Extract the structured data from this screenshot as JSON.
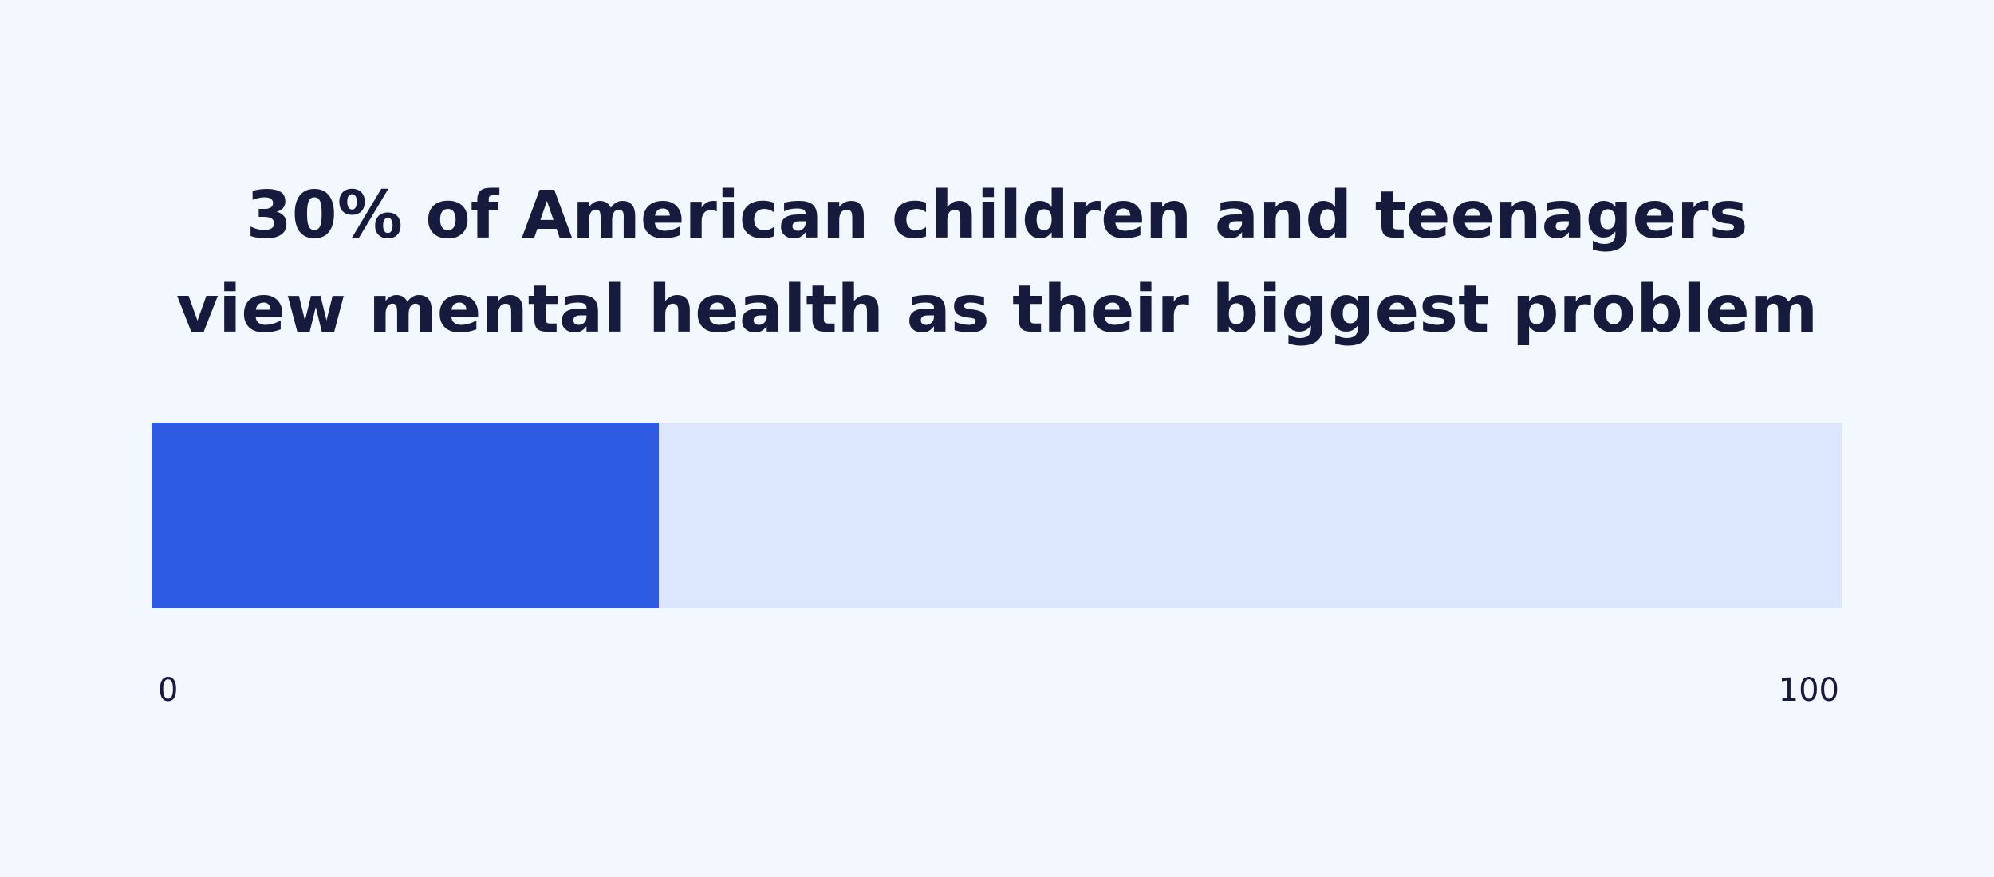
{
  "colors": {
    "background": "#f3f7fe",
    "fill": "#2e5be3",
    "track": "#dce7fd",
    "text": "#161a3d"
  },
  "chart_data": {
    "type": "bar",
    "title_lines": [
      "30% of American children and teenagers",
      "view mental health as their biggest problem"
    ],
    "value": 30,
    "xlim": [
      0,
      100
    ],
    "tick_labels": [
      "0",
      "100"
    ],
    "grid": false,
    "legend": "none"
  }
}
